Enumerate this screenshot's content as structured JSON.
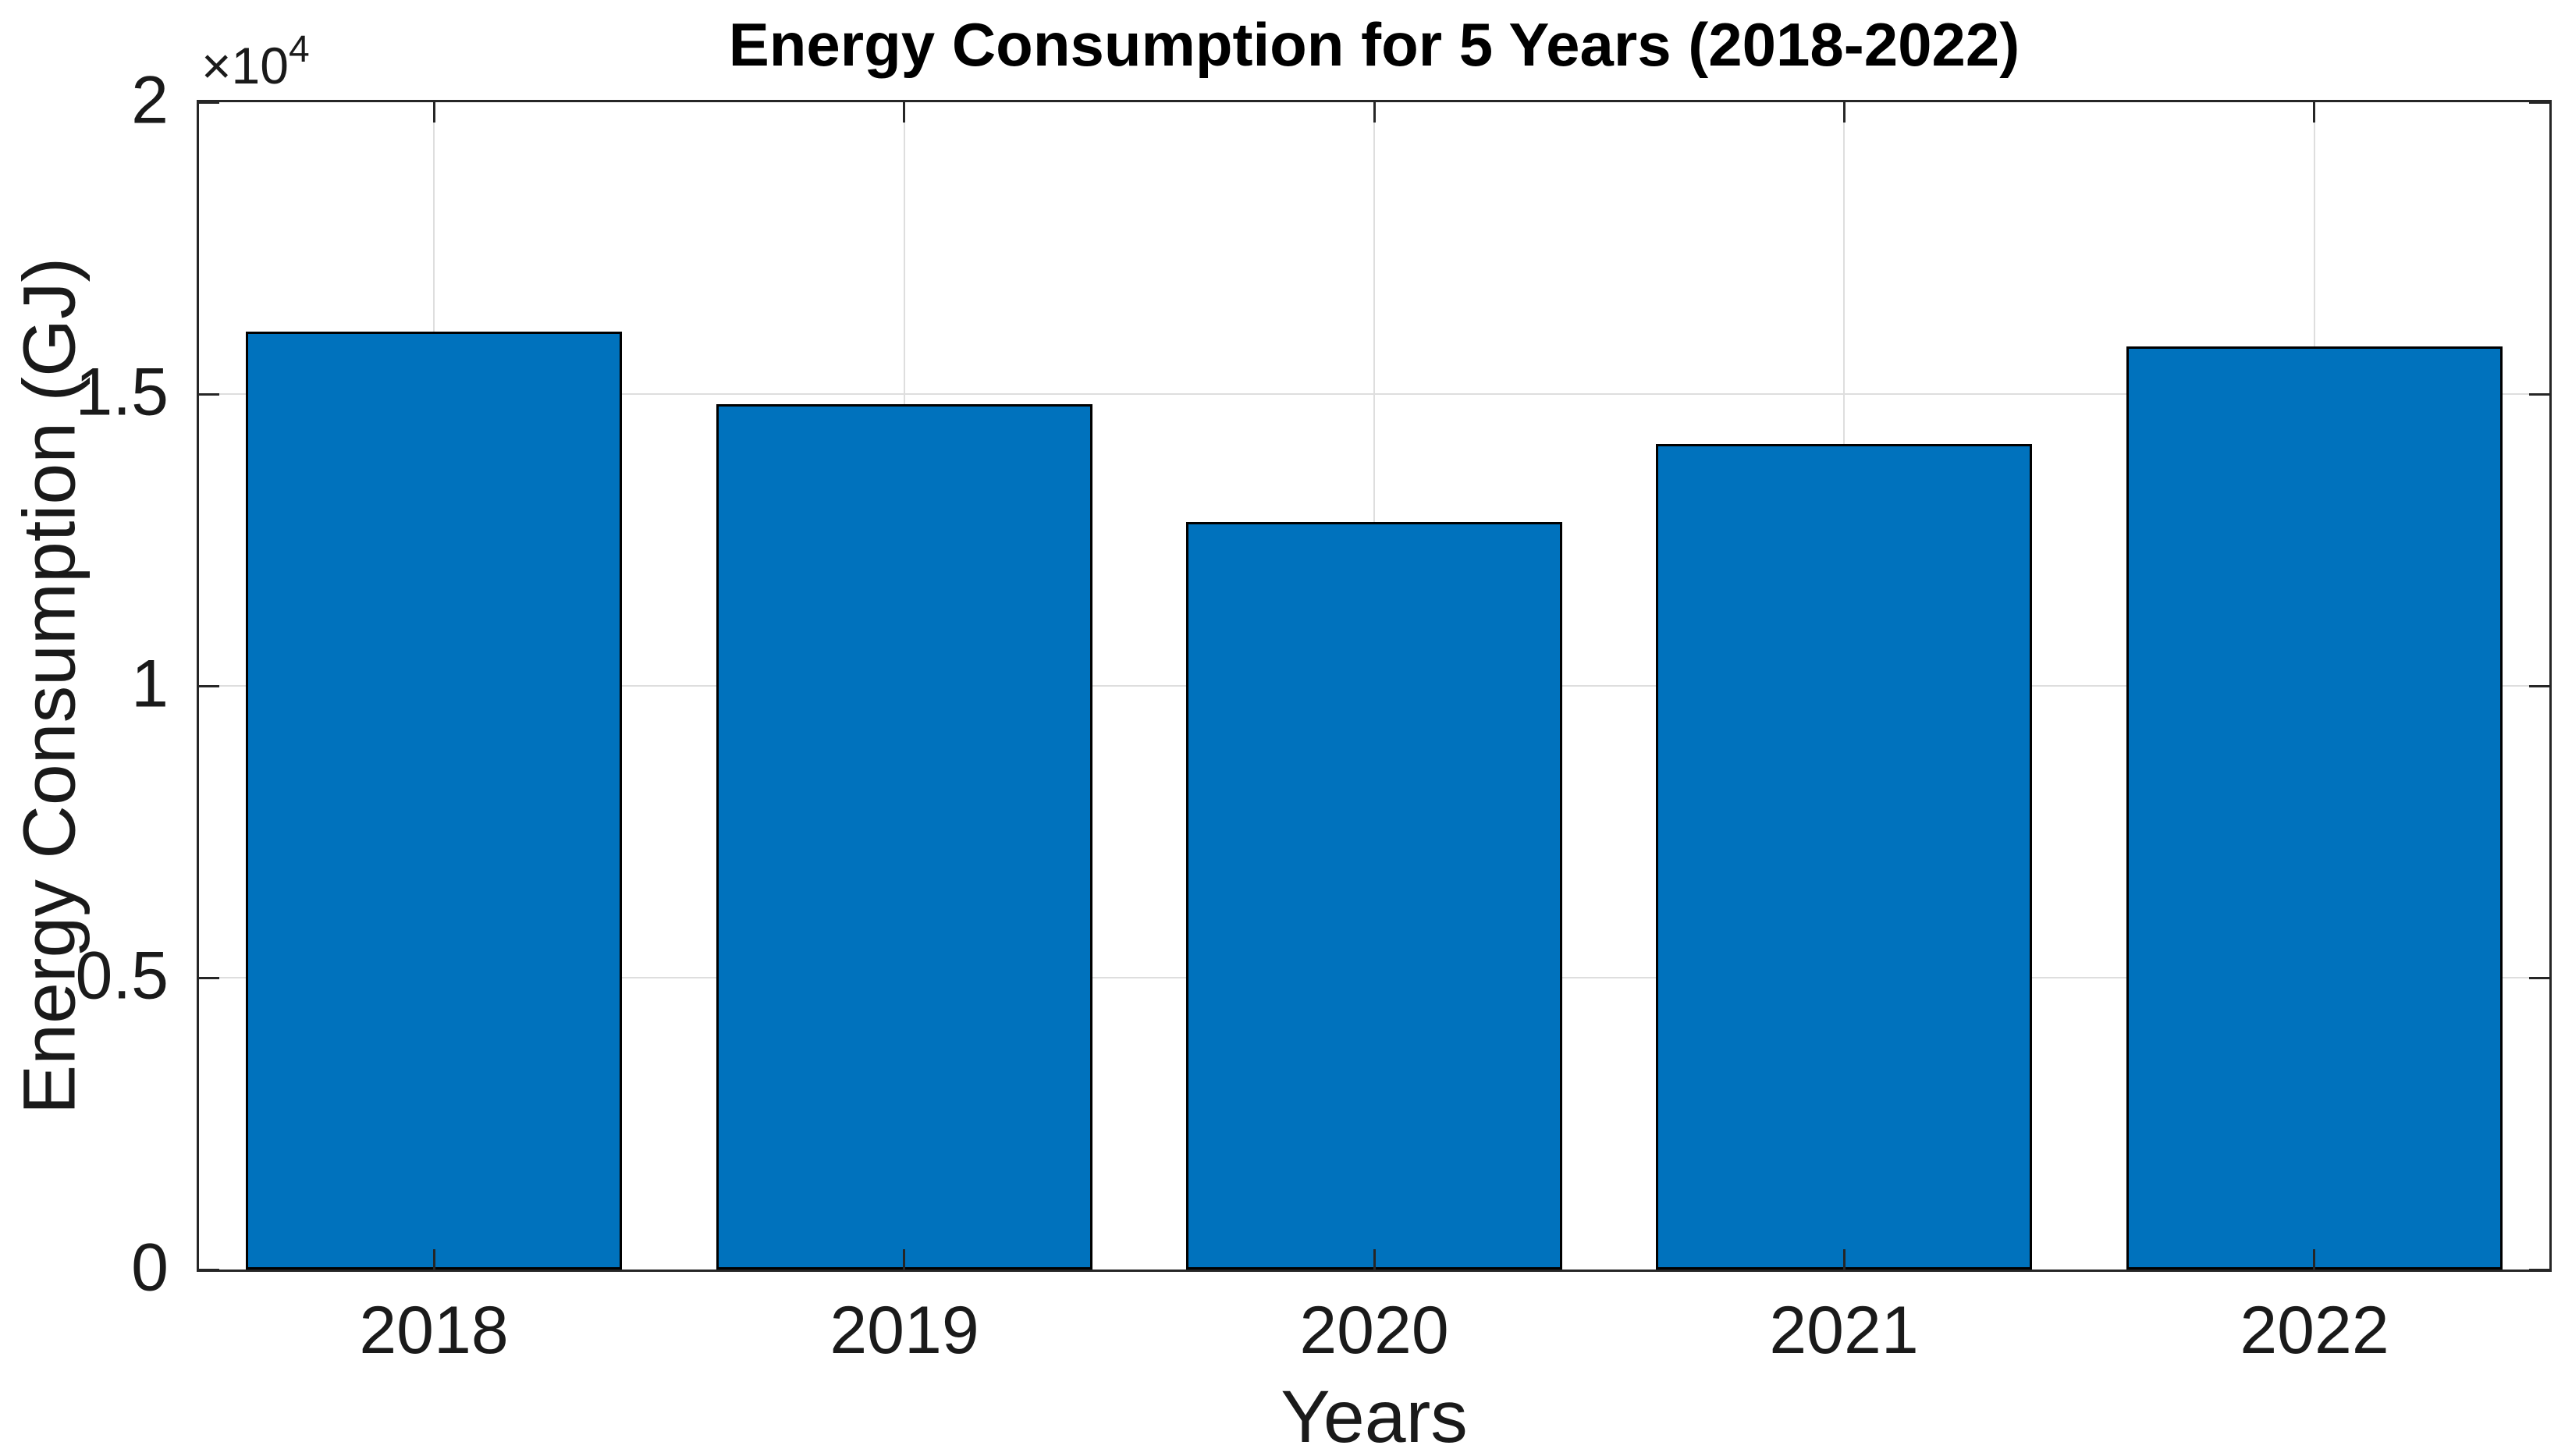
{
  "chart_data": {
    "type": "bar",
    "title": "Energy Consumption for 5 Years (2018-2022)",
    "xlabel": "Years",
    "ylabel": "Energy Consumption (GJ)",
    "categories": [
      "2018",
      "2019",
      "2020",
      "2021",
      "2022"
    ],
    "values": [
      16070,
      14820,
      12810,
      14150,
      15820
    ],
    "ylim": [
      0,
      20000
    ],
    "ytick_values": [
      0,
      5000,
      10000,
      15000,
      20000
    ],
    "ytick_labels": [
      "0",
      "0.5",
      "1",
      "1.5",
      "2"
    ],
    "y_offset_text": "×10",
    "y_offset_exponent": "4",
    "grid": true,
    "legend": "none",
    "bar_color": "#0072BD",
    "bar_edge_color": "#000000",
    "axis_color": "#262626",
    "grid_color": "#dedede",
    "bar_width_fraction": 0.8
  }
}
